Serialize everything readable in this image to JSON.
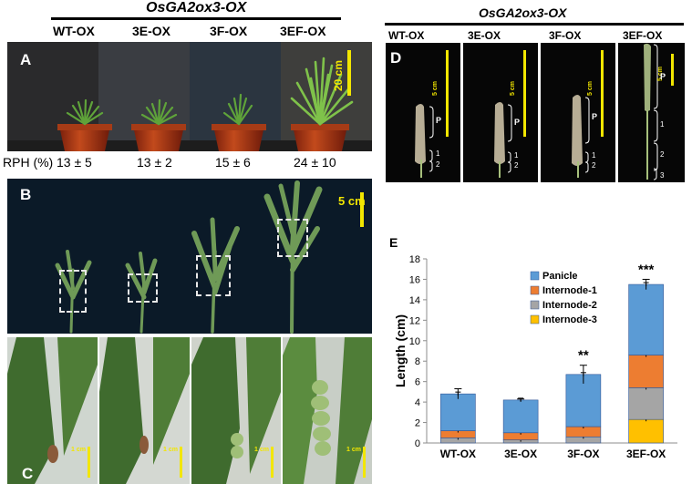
{
  "figure": {
    "left_title": "OsGA2ox3-OX",
    "right_title": "OsGA2ox3-OX",
    "genotypes": [
      "WT-OX",
      "3E-OX",
      "3F-OX",
      "3EF-OX"
    ],
    "panelA": {
      "letter": "A",
      "scale": "20 cm",
      "rph_label": "RPH (%)",
      "rph_values": [
        "13 ± 5",
        "13 ± 2",
        "15 ± 6",
        "24 ± 10"
      ]
    },
    "panelB": {
      "letter": "B",
      "scale": "5 cm"
    },
    "panelC": {
      "letter": "C",
      "scale": "1 cm"
    },
    "panelD": {
      "letter": "D",
      "scale": "5 cm",
      "labels": {
        "p": "P",
        "n1": "1",
        "n2": "2",
        "n3": "3"
      }
    },
    "panelE": {
      "letter": "E"
    }
  },
  "colors": {
    "panicle": "#5b9bd5",
    "internode1": "#ed7d31",
    "internode2": "#a5a5a5",
    "internode3": "#ffc000",
    "scale": "#f2e600"
  },
  "chart_data": {
    "type": "bar",
    "stacked": true,
    "categories": [
      "WT-OX",
      "3E-OX",
      "3F-OX",
      "3EF-OX"
    ],
    "series": [
      {
        "name": "Internode-3",
        "values": [
          0.0,
          0.0,
          0.0,
          2.3
        ]
      },
      {
        "name": "Internode-2",
        "values": [
          0.5,
          0.3,
          0.6,
          3.1
        ]
      },
      {
        "name": "Internode-1",
        "values": [
          0.7,
          0.7,
          1.0,
          3.2
        ]
      },
      {
        "name": "Panicle",
        "values": [
          3.6,
          3.2,
          5.1,
          6.9
        ]
      }
    ],
    "legend_order": [
      "Panicle",
      "Internode-1",
      "Internode-2",
      "Internode-3"
    ],
    "error_totals": [
      0.5,
      0.1,
      0.9,
      0.5
    ],
    "significance": [
      "",
      "",
      "**",
      "***"
    ],
    "ylabel": "Length (cm)",
    "yticks": [
      "0",
      "2",
      "4",
      "6",
      "8",
      "10",
      "12",
      "14",
      "16",
      "18"
    ],
    "ylim": [
      0,
      18
    ]
  }
}
